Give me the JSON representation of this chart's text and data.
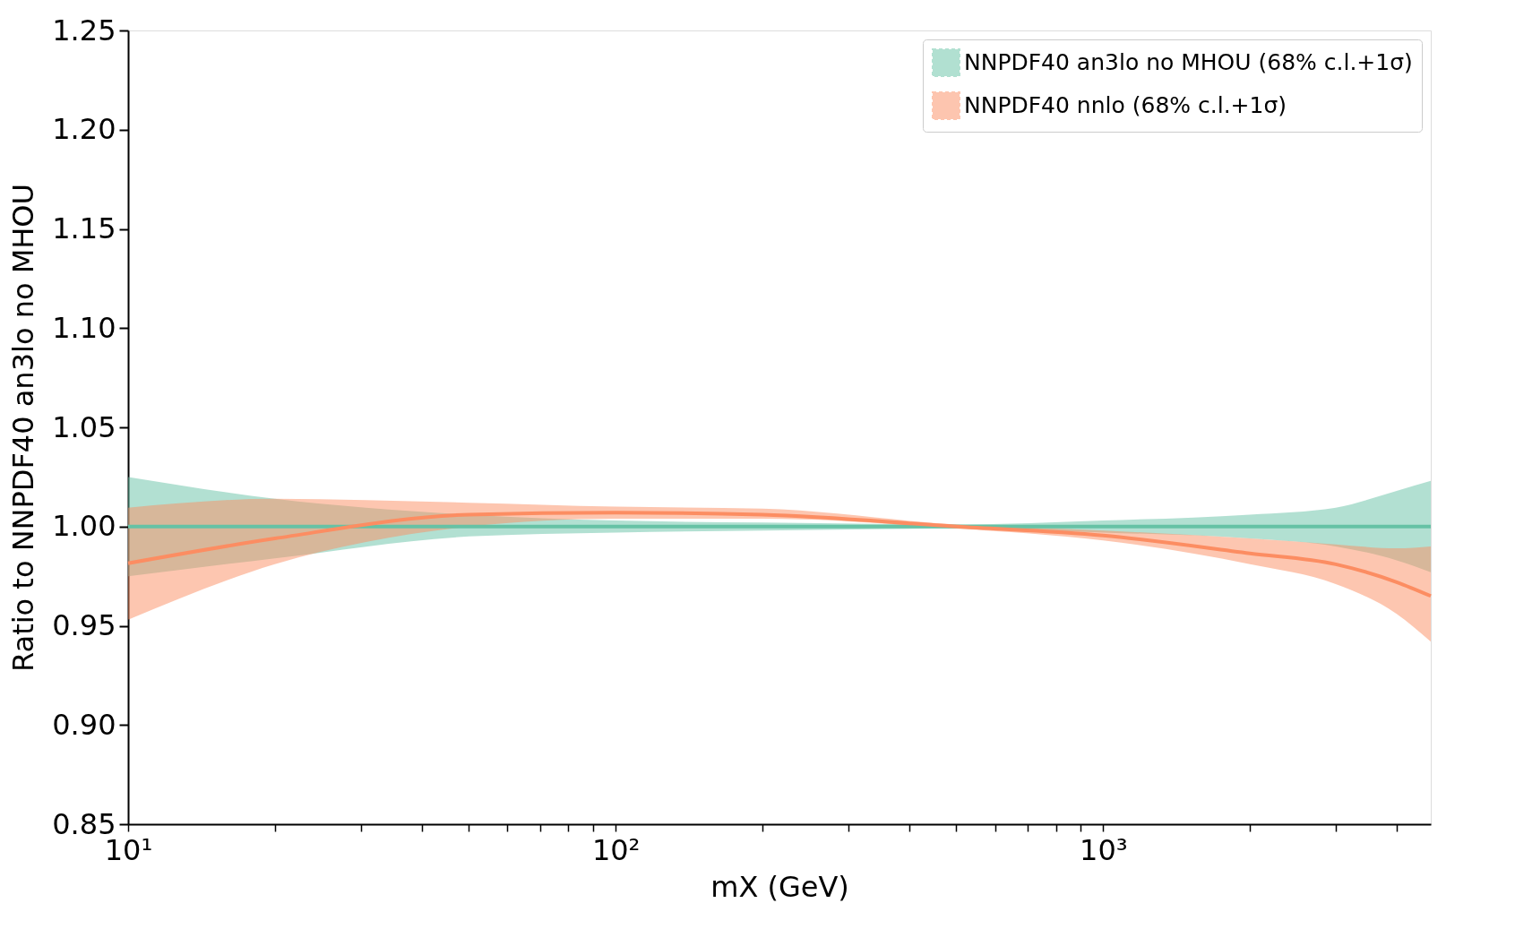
{
  "chart_data": {
    "type": "line",
    "xlabel": "mX (GeV)",
    "ylabel": "Ratio to NNPDF40 an3lo no MHOU",
    "log": "x",
    "grid": false,
    "legend": "top right",
    "x": [
      10,
      20,
      50,
      100,
      200,
      500,
      1000,
      2000,
      3000,
      4000,
      4700
    ],
    "series": [
      {
        "name": "NNPDF40 an3lo no MHOU (68% c.l.+1σ)",
        "color": "#66c2a5",
        "values": [
          1.0,
          1.0,
          1.0,
          1.0,
          1.0,
          1.0,
          1.0,
          1.0,
          1.0,
          1.0,
          1.0
        ],
        "lower": [
          0.975,
          0.984,
          0.995,
          0.997,
          0.998,
          0.999,
          0.997,
          0.994,
          0.99,
          0.983,
          0.977
        ],
        "upper": [
          1.025,
          1.014,
          1.006,
          1.003,
          1.002,
          1.001,
          1.003,
          1.006,
          1.0095,
          1.018,
          1.023
        ]
      },
      {
        "name": "NNPDF40 nnlo (68% c.l.+1σ)",
        "color": "#fc8d62",
        "values": [
          0.9815,
          0.994,
          1.006,
          1.007,
          1.006,
          1.0,
          0.9955,
          0.9865,
          0.981,
          0.972,
          0.965
        ],
        "lower": [
          0.953,
          0.981,
          1.0,
          1.004,
          1.004,
          0.999,
          0.993,
          0.981,
          0.971,
          0.956,
          0.942
        ],
        "upper": [
          1.0095,
          1.014,
          1.012,
          1.01,
          1.009,
          1.001,
          0.998,
          0.994,
          0.991,
          0.989,
          0.99
        ]
      }
    ],
    "xlim": [
      10,
      4700
    ],
    "xticks": [
      {
        "value": 10,
        "label": "10¹"
      },
      {
        "value": 20,
        "label": null
      },
      {
        "value": 30,
        "label": null
      },
      {
        "value": 40,
        "label": null
      },
      {
        "value": 50,
        "label": null
      },
      {
        "value": 60,
        "label": null
      },
      {
        "value": 70,
        "label": null
      },
      {
        "value": 80,
        "label": null
      },
      {
        "value": 90,
        "label": null
      },
      {
        "value": 100,
        "label": "10²"
      },
      {
        "value": 200,
        "label": null
      },
      {
        "value": 300,
        "label": null
      },
      {
        "value": 400,
        "label": null
      },
      {
        "value": 500,
        "label": null
      },
      {
        "value": 600,
        "label": null
      },
      {
        "value": 700,
        "label": null
      },
      {
        "value": 800,
        "label": null
      },
      {
        "value": 900,
        "label": null
      },
      {
        "value": 1000,
        "label": "10³"
      },
      {
        "value": 2000,
        "label": null
      },
      {
        "value": 3000,
        "label": null
      },
      {
        "value": 4000,
        "label": null
      }
    ],
    "ylim": [
      0.85,
      1.25
    ],
    "yticks": [
      {
        "value": 0.85,
        "label": "0.85"
      },
      {
        "value": 0.9,
        "label": "0.90"
      },
      {
        "value": 0.95,
        "label": "0.95"
      },
      {
        "value": 1.0,
        "label": "1.00"
      },
      {
        "value": 1.05,
        "label": "1.05"
      },
      {
        "value": 1.1,
        "label": "1.10"
      },
      {
        "value": 1.15,
        "label": "1.15"
      },
      {
        "value": 1.2,
        "label": "1.20"
      },
      {
        "value": 1.25,
        "label": "1.25"
      }
    ]
  }
}
